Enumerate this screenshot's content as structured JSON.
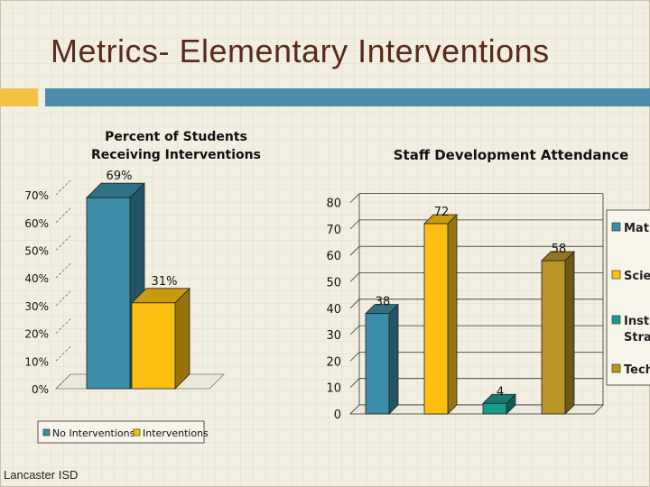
{
  "slide": {
    "title": "Metrics- Elementary Interventions",
    "footer": "Lancaster ISD"
  },
  "colors": {
    "background": "#f2efe2",
    "title": "#5a2a1a",
    "accent_yellow": "#f4c242",
    "accent_blue": "#4b8cab"
  },
  "chart_data": [
    {
      "type": "bar",
      "title": "Percent of Students Receiving Interventions",
      "title_lines": [
        "Percent of Students",
        "Receiving Interventions"
      ],
      "categories": [
        "No Interventions",
        "Interventions"
      ],
      "values": [
        69,
        31
      ],
      "data_labels": [
        "69%",
        "31%"
      ],
      "colors": [
        "#3b8ea6",
        "#fbbf12"
      ],
      "yticks": [
        "0%",
        "10%",
        "20%",
        "30%",
        "40%",
        "50%",
        "60%",
        "70%"
      ],
      "ylim": [
        0,
        70
      ],
      "grid": false,
      "legend_position": "bottom",
      "legend": [
        "No Interventions",
        "Interventions"
      ]
    },
    {
      "type": "bar",
      "title": "Staff Development Attendance",
      "categories": [
        "Math",
        "Science",
        "Instructional Strategies",
        "Technology"
      ],
      "values": [
        38,
        72,
        4,
        58
      ],
      "data_labels": [
        "38",
        "72",
        "4",
        "58"
      ],
      "colors": [
        "#3b8ea6",
        "#fbbf12",
        "#1a9a8e",
        "#b89526"
      ],
      "yticks": [
        "0",
        "10",
        "20",
        "30",
        "40",
        "50",
        "60",
        "70",
        "80"
      ],
      "ylim": [
        0,
        80
      ],
      "grid": true,
      "legend_position": "right",
      "legend": [
        "Mat",
        "Scie",
        "Instr Strat",
        "Tech"
      ]
    }
  ]
}
